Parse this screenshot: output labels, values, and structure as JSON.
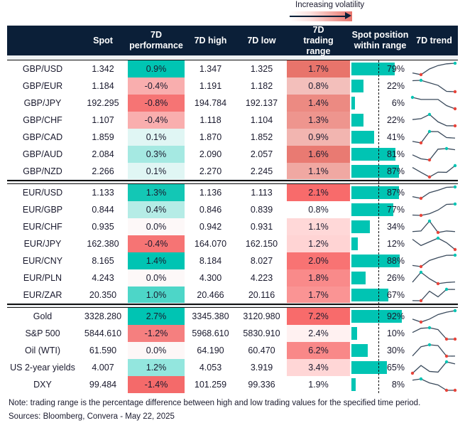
{
  "legend": {
    "label": "Increasing volatility"
  },
  "header": {
    "columns": [
      "",
      "Spot",
      "7D performance",
      "7D high",
      "7D low",
      "7D trading range",
      "Spot position within range",
      "7D trend"
    ]
  },
  "colors": {
    "header_bg": "#0b1f38",
    "position_bar": "#00c4b3",
    "trend_line": "#3a4a5c",
    "high_marker": "#00c4b3",
    "low_marker": "#e8443a"
  },
  "groups": [
    {
      "rows": [
        {
          "name": "GBP/USD",
          "spot": "1.342",
          "perf": "0.9%",
          "perf_color": "#00c5b3",
          "high": "1.347",
          "low": "1.325",
          "range": "1.7%",
          "range_color": "#e8746b",
          "position": 79,
          "position_label": "79%",
          "trend": [
            0.15,
            0,
            0.5,
            0.8,
            0.95,
            1
          ]
        },
        {
          "name": "GBP/EUR",
          "spot": "1.184",
          "perf": "-0.4%",
          "perf_color": "#f9aeae",
          "high": "1.191",
          "low": "1.182",
          "range": "0.8%",
          "range_color": "#f3bfbb",
          "position": 22,
          "position_label": "22%",
          "trend": [
            0.97,
            1,
            0.78,
            0.56,
            0.03,
            0
          ]
        },
        {
          "name": "GBP/JPY",
          "spot": "192.295",
          "perf": "-0.8%",
          "perf_color": "#f67474",
          "high": "194.784",
          "low": "192.137",
          "range": "1.4%",
          "range_color": "#ec8a82",
          "position": 6,
          "position_label": "6%",
          "trend": [
            1,
            0.82,
            0.82,
            0.82,
            0.28,
            0
          ]
        },
        {
          "name": "GBP/CHF",
          "spot": "1.107",
          "perf": "-0.4%",
          "perf_color": "#f9aeae",
          "high": "1.118",
          "low": "1.104",
          "range": "1.3%",
          "range_color": "#ee958e",
          "position": 22,
          "position_label": "22%",
          "trend": [
            0.55,
            0.63,
            1,
            0.35,
            0.01,
            0
          ]
        },
        {
          "name": "GBP/CAD",
          "spot": "1.859",
          "perf": "0.1%",
          "perf_color": "#e0f6f4",
          "high": "1.870",
          "low": "1.852",
          "range": "0.9%",
          "range_color": "#f2b5b0",
          "position": 41,
          "position_label": "41%",
          "trend": [
            0.13,
            0,
            1,
            0.99,
            0.47,
            0.42
          ]
        },
        {
          "name": "GBP/AUD",
          "spot": "2.084",
          "perf": "0.3%",
          "perf_color": "#a5e9e2",
          "high": "2.090",
          "low": "2.057",
          "range": "1.6%",
          "range_color": "#e97a72",
          "position": 81,
          "position_label": "81%",
          "trend": [
            0.45,
            0.1,
            0,
            0.95,
            1,
            0.9
          ]
        },
        {
          "name": "GBP/NZD",
          "spot": "2.266",
          "perf": "0.1%",
          "perf_color": "#e0f6f4",
          "high": "2.270",
          "low": "2.245",
          "range": "1.1%",
          "range_color": "#f0a8a2",
          "position": 87,
          "position_label": "87%",
          "trend": [
            0.84,
            0.41,
            0,
            0.43,
            0.41,
            1
          ]
        }
      ]
    },
    {
      "rows": [
        {
          "name": "EUR/USD",
          "spot": "1.133",
          "perf": "1.3%",
          "perf_color": "#13c7b5",
          "high": "1.136",
          "low": "1.113",
          "range": "2.1%",
          "range_color": "#f86b6b",
          "position": 87,
          "position_label": "87%",
          "trend": [
            0.15,
            0,
            0.5,
            0.71,
            0.97,
            1
          ]
        },
        {
          "name": "EUR/GBP",
          "spot": "0.844",
          "perf": "0.4%",
          "perf_color": "#b5ece6",
          "high": "0.846",
          "low": "0.839",
          "range": "0.8%",
          "range_color": "#ffffff",
          "position": 77,
          "position_label": "77%",
          "trend": [
            0.03,
            0,
            0.15,
            0.47,
            0.97,
            1
          ]
        },
        {
          "name": "EUR/CHF",
          "spot": "0.935",
          "perf": "0.0%",
          "perf_color": "#fdf8f8",
          "high": "0.942",
          "low": "0.931",
          "range": "1.1%",
          "range_color": "#ffd8d8",
          "position": 34,
          "position_label": "34%",
          "trend": [
            0.08,
            0.13,
            1,
            0,
            0.13,
            0.08
          ]
        },
        {
          "name": "EUR/JPY",
          "spot": "162.380",
          "perf": "-0.4%",
          "perf_color": "#f67474",
          "high": "164.070",
          "low": "162.150",
          "range": "1.2%",
          "range_color": "#ffd4d4",
          "position": 12,
          "position_label": "12%",
          "trend": [
            0.9,
            0.35,
            0.68,
            1,
            0.6,
            0
          ]
        },
        {
          "name": "EUR/CNY",
          "spot": "8.165",
          "perf": "1.4%",
          "perf_color": "#00c4b3",
          "high": "8.184",
          "low": "8.027",
          "range": "2.0%",
          "range_color": "#f87373",
          "position": 88,
          "position_label": "88%",
          "trend": [
            0.1,
            0,
            0.54,
            0.79,
            0.99,
            1
          ]
        },
        {
          "name": "EUR/PLN",
          "spot": "4.243",
          "perf": "0.0%",
          "perf_color": "#fdf8f8",
          "high": "4.300",
          "low": "4.223",
          "range": "1.8%",
          "range_color": "#f98a8a",
          "position": 26,
          "position_label": "26%",
          "trend": [
            0.13,
            1,
            0.43,
            0,
            0.1,
            0.15
          ]
        },
        {
          "name": "EUR/ZAR",
          "spot": "20.350",
          "perf": "1.0%",
          "perf_color": "#4dd6c8",
          "high": "20.466",
          "low": "20.116",
          "range": "1.7%",
          "range_color": "#fa9494",
          "position": 67,
          "position_label": "67%",
          "trend": [
            0.01,
            0,
            0.84,
            0.34,
            1,
            0.99
          ]
        }
      ]
    },
    {
      "rows": [
        {
          "name": "Gold",
          "spot": "3328.280",
          "perf": "2.7%",
          "perf_color": "#00c4b3",
          "high": "3345.380",
          "low": "3120.980",
          "range": "7.2%",
          "range_color": "#f86b6b",
          "position": 92,
          "position_label": "92%",
          "trend": [
            0.26,
            0,
            0.26,
            0.66,
            0.87,
            1
          ]
        },
        {
          "name": "S&P 500",
          "spot": "5844.610",
          "perf": "-1.2%",
          "perf_color": "#f57f7f",
          "high": "5968.610",
          "low": "5830.910",
          "range": "2.4%",
          "range_color": "#fff1f1",
          "position": 10,
          "position_label": "10%",
          "trend": [
            0.58,
            0.95,
            1,
            0.84,
            0,
            0
          ]
        },
        {
          "name": "Oil (WTI)",
          "spot": "61.590",
          "perf": "0.0%",
          "perf_color": "#fdf7f7",
          "high": "64.190",
          "low": "60.470",
          "range": "6.2%",
          "range_color": "#f98888",
          "position": 30,
          "position_label": "30%",
          "trend": [
            0.02,
            0.83,
            1,
            0.93,
            0,
            0.01
          ]
        },
        {
          "name": "US 2-year yields",
          "spot": "4.007",
          "perf": "1.2%",
          "perf_color": "#93e6de",
          "high": "4.053",
          "low": "3.919",
          "range": "3.4%",
          "range_color": "#ffd6d6",
          "position": 65,
          "position_label": "65%",
          "trend": [
            0,
            0.68,
            0.16,
            0.1,
            1,
            0.82
          ]
        },
        {
          "name": "DXY",
          "spot": "99.484",
          "perf": "-1.4%",
          "perf_color": "#f46a6a",
          "high": "101.259",
          "low": "99.336",
          "range": "1.9%",
          "range_color": "#ffffff",
          "position": 8,
          "position_label": "8%",
          "trend": [
            0.89,
            1,
            0.65,
            0.47,
            0,
            0
          ]
        }
      ]
    }
  ],
  "footer": {
    "note": "Note: trading range is the percentage difference between high and low trading values for the specified time period.",
    "sources": "Sources: Bloomberg, Convera - May 22, 2025"
  }
}
